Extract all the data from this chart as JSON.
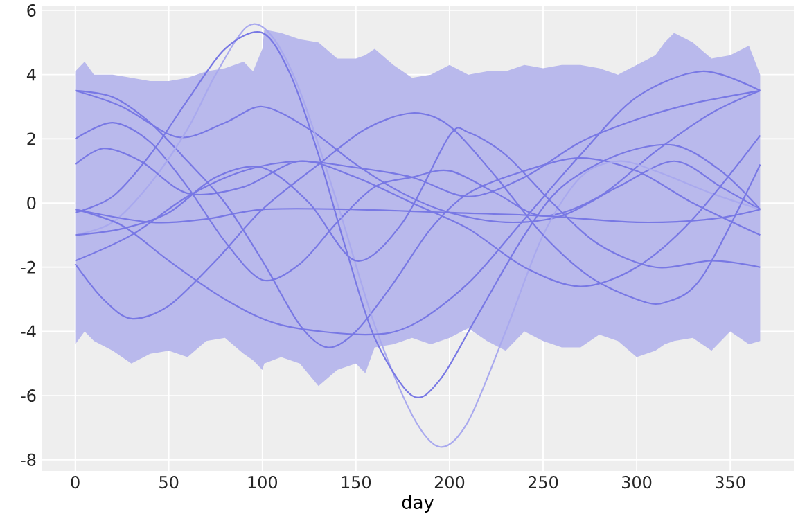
{
  "chart_data": {
    "type": "line",
    "xlabel": "day",
    "xlim": [
      -18,
      384
    ],
    "ylim": [
      -8.35,
      6.15
    ],
    "xticks": [
      0,
      50,
      100,
      150,
      200,
      250,
      300,
      350
    ],
    "yticks": [
      -8,
      -6,
      -4,
      -2,
      0,
      2,
      4,
      6
    ],
    "grid": true,
    "series": [
      {
        "color": "#b9b9ec",
        "x": [
          0,
          5,
          10,
          20,
          30,
          40,
          50,
          60,
          70,
          80,
          90,
          95,
          100,
          101,
          110,
          120,
          130,
          140,
          150,
          155,
          160,
          170,
          180,
          190,
          200,
          210,
          220,
          230,
          240,
          250,
          260,
          270,
          280,
          290,
          300,
          310,
          315,
          320,
          330,
          340,
          350,
          360,
          366
        ],
        "values": [
          null,
          null,
          null,
          null,
          null,
          null,
          null,
          null,
          null,
          null,
          null,
          null,
          null,
          null,
          null,
          null,
          null,
          null,
          null,
          null,
          null,
          null,
          null,
          null,
          null,
          null,
          null,
          null,
          null,
          null,
          null,
          null,
          null,
          null,
          null,
          null,
          null,
          null,
          null,
          null,
          null,
          null,
          null
        ],
        "upper": [
          4.1,
          4.4,
          4.0,
          4.0,
          3.9,
          3.8,
          3.8,
          3.9,
          4.1,
          4.2,
          4.4,
          4.1,
          4.8,
          5.4,
          5.3,
          5.1,
          5.0,
          4.5,
          4.5,
          4.6,
          4.8,
          4.3,
          3.9,
          4.0,
          4.3,
          4.0,
          4.1,
          4.1,
          4.3,
          4.2,
          4.3,
          4.3,
          4.2,
          4.0,
          4.3,
          4.6,
          5.0,
          5.3,
          5.0,
          4.5,
          4.6,
          4.9,
          4.0
        ],
        "lower": [
          -4.4,
          -4.0,
          -4.3,
          -4.6,
          -5.0,
          -4.7,
          -4.6,
          -4.8,
          -4.3,
          -4.2,
          -4.7,
          -4.9,
          -5.2,
          -5.0,
          -4.8,
          -5.0,
          -5.7,
          -5.2,
          -5.0,
          -5.3,
          -4.5,
          -4.4,
          -4.2,
          -4.4,
          -4.2,
          -3.9,
          -4.3,
          -4.6,
          -4.0,
          -4.3,
          -4.5,
          -4.5,
          -4.1,
          -4.3,
          -4.8,
          -4.6,
          -4.4,
          -4.3,
          -4.2,
          -4.6,
          -4.0,
          -4.4,
          -4.3
        ]
      },
      {
        "color": "#7878e4",
        "x": [
          0,
          25,
          55,
          80,
          100,
          125,
          150,
          175,
          200,
          230,
          260,
          290,
          320,
          345,
          366
        ],
        "values": [
          3.5,
          3.0,
          2.05,
          2.5,
          3.0,
          2.3,
          1.2,
          0.3,
          -0.3,
          -0.6,
          -0.4,
          0.5,
          1.3,
          0.5,
          -0.2
        ]
      },
      {
        "color": "#7878e4",
        "x": [
          0,
          20,
          40,
          60,
          80,
          100,
          120,
          135,
          150,
          170,
          190,
          210,
          240,
          270,
          300,
          330,
          366
        ],
        "values": [
          3.5,
          3.3,
          2.5,
          1.3,
          0.0,
          -1.8,
          -3.8,
          -4.5,
          -4.0,
          -2.5,
          -0.8,
          0.3,
          1.0,
          1.4,
          1.0,
          0.0,
          -1.0
        ]
      },
      {
        "color": "#7878e4",
        "x": [
          0,
          20,
          40,
          60,
          80,
          100,
          120,
          140,
          160,
          180,
          200,
          225,
          250,
          280,
          310,
          340,
          366
        ],
        "values": [
          2.0,
          2.5,
          1.9,
          0.5,
          -1.2,
          -2.4,
          -1.9,
          -0.6,
          0.5,
          0.8,
          1.0,
          0.3,
          -0.4,
          0.2,
          1.6,
          2.8,
          3.5
        ]
      },
      {
        "color": "#a9a9ee",
        "x": [
          0,
          20,
          40,
          60,
          75,
          92,
          105,
          120,
          140,
          160,
          180,
          195,
          210,
          230,
          250,
          270,
          290,
          310,
          340,
          366
        ],
        "values": [
          -1.0,
          -0.6,
          0.6,
          2.3,
          4.0,
          5.5,
          5.2,
          3.5,
          0.0,
          -3.8,
          -6.6,
          -7.6,
          -6.8,
          -4.0,
          -1.0,
          0.8,
          1.3,
          1.0,
          0.3,
          -0.2
        ]
      },
      {
        "color": "#7878e4",
        "x": [
          0,
          20,
          40,
          60,
          80,
          100,
          115,
          130,
          145,
          160,
          180,
          195,
          215,
          240,
          260,
          290,
          320,
          345,
          366
        ],
        "values": [
          -0.3,
          0.2,
          1.5,
          3.2,
          4.8,
          5.3,
          4.0,
          1.5,
          -1.5,
          -4.2,
          -6.0,
          -5.5,
          -3.5,
          -1.0,
          0.5,
          1.5,
          1.8,
          1.0,
          -0.2
        ]
      },
      {
        "color": "#7878e4",
        "x": [
          0,
          15,
          30,
          50,
          75,
          100,
          130,
          155,
          180,
          200,
          225,
          250,
          275,
          300,
          315,
          335,
          366
        ],
        "values": [
          -1.9,
          -3.0,
          -3.6,
          -3.2,
          -1.8,
          -0.2,
          1.2,
          2.3,
          2.8,
          2.4,
          0.8,
          -1.0,
          -2.3,
          -3.0,
          -3.1,
          -2.3,
          1.2
        ]
      },
      {
        "color": "#7878e4",
        "x": [
          0,
          25,
          50,
          75,
          100,
          125,
          150,
          175,
          200,
          210,
          230,
          255,
          280,
          310,
          340,
          366
        ],
        "values": [
          -1.0,
          -0.8,
          -0.3,
          0.8,
          1.1,
          0.0,
          -1.8,
          -0.6,
          2.1,
          2.2,
          1.5,
          0.0,
          -1.3,
          -2.0,
          -1.8,
          -2.0
        ]
      },
      {
        "color": "#7878e4",
        "x": [
          0,
          25,
          50,
          80,
          110,
          155,
          180,
          210,
          240,
          270,
          300,
          335,
          366
        ],
        "values": [
          -0.2,
          -0.7,
          -1.8,
          -3.0,
          -3.8,
          -4.1,
          -3.8,
          -2.5,
          -0.5,
          1.5,
          3.3,
          4.1,
          3.5
        ]
      },
      {
        "color": "#7878e4",
        "x": [
          0,
          15,
          35,
          60,
          90,
          120,
          150,
          180,
          210,
          240,
          270,
          300,
          330,
          366
        ],
        "values": [
          1.2,
          1.7,
          1.3,
          0.3,
          0.5,
          1.3,
          0.8,
          0.0,
          -0.8,
          -2.0,
          -2.6,
          -2.0,
          -0.5,
          2.1
        ]
      },
      {
        "color": "#7878e4",
        "x": [
          0,
          40,
          70,
          100,
          150,
          200,
          250,
          300,
          340,
          366
        ],
        "values": [
          -0.2,
          -0.6,
          -0.5,
          -0.2,
          -0.2,
          -0.3,
          -0.4,
          -0.6,
          -0.5,
          -0.2
        ]
      },
      {
        "color": "#7878e4",
        "x": [
          0,
          30,
          60,
          90,
          120,
          150,
          180,
          210,
          240,
          270,
          300,
          330,
          366
        ],
        "values": [
          -1.8,
          -1.0,
          0.2,
          1.0,
          1.3,
          1.1,
          0.8,
          0.2,
          0.8,
          1.9,
          2.6,
          3.1,
          3.5
        ]
      }
    ]
  }
}
